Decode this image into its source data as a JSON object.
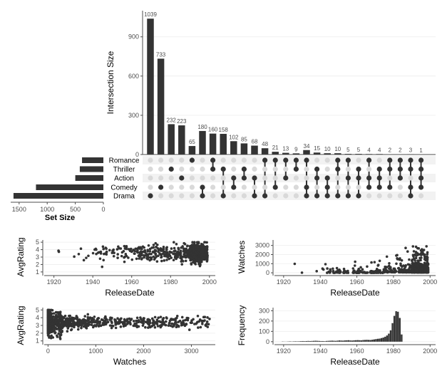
{
  "chart_data": [
    {
      "type": "bar",
      "name": "upset-intersection-sizes",
      "ylabel": "Intersection Size",
      "ylim": [
        0,
        1100
      ],
      "yticks": [
        0,
        300,
        600,
        900
      ],
      "ytick_labels": [
        "0",
        "300",
        "600",
        "900"
      ],
      "values": [
        1039,
        733,
        232,
        223,
        65,
        180,
        160,
        158,
        102,
        85,
        68,
        48,
        21,
        13,
        9,
        34,
        15,
        10,
        10,
        5,
        5,
        4,
        4,
        2,
        2,
        3,
        1
      ],
      "value_labels": [
        "1039",
        "733",
        "232",
        "223",
        "65",
        "180",
        "160",
        "158",
        "102",
        "85",
        "68",
        "48",
        "21",
        "13",
        "9",
        "34",
        "15",
        "10",
        "10",
        "5",
        "5",
        "4",
        "4",
        "2",
        "2",
        "3",
        "1"
      ],
      "combinations": [
        [
          "Drama"
        ],
        [
          "Comedy"
        ],
        [
          "Thriller"
        ],
        [
          "Action"
        ],
        [
          "Romance"
        ],
        [
          "Drama",
          "Comedy"
        ],
        [
          "Thriller",
          "Romance"
        ],
        [
          "Drama",
          "Thriller"
        ],
        [
          "Comedy",
          "Action"
        ],
        [
          "Thriller",
          "Action"
        ],
        [
          "Drama",
          "Action"
        ],
        [
          "Drama",
          "Romance"
        ],
        [
          "Comedy",
          "Romance"
        ],
        [
          "Action",
          "Romance"
        ],
        [
          "Thriller",
          "Romance"
        ],
        [
          "Drama",
          "Comedy",
          "Romance"
        ],
        [
          "Drama",
          "Thriller",
          "Action"
        ],
        [
          "Drama",
          "Comedy",
          "Action"
        ],
        [
          "Drama",
          "Thriller",
          "Romance"
        ],
        [
          "Drama",
          "Action",
          "Romance"
        ],
        [
          "Drama",
          "Thriller",
          "Action"
        ],
        [
          "Comedy",
          "Action",
          "Romance"
        ],
        [
          "Comedy",
          "Thriller",
          "Action"
        ],
        [
          "Comedy",
          "Thriller",
          "Romance"
        ],
        [
          "Thriller",
          "Action",
          "Romance"
        ],
        [
          "Drama",
          "Comedy",
          "Thriller",
          "Romance"
        ],
        [
          "Comedy",
          "Thriller",
          "Action",
          "Romance"
        ]
      ]
    },
    {
      "type": "bar",
      "name": "upset-set-sizes",
      "orientation": "horizontal",
      "xlabel": "Set Size",
      "xlim": [
        1650,
        0
      ],
      "xticks": [
        1500,
        1000,
        500,
        0
      ],
      "xtick_labels": [
        "1500",
        "1000",
        "500",
        "0"
      ],
      "sets": [
        "Romance",
        "Thriller",
        "Action",
        "Comedy",
        "Drama"
      ],
      "values": [
        380,
        420,
        500,
        1200,
        1600
      ]
    },
    {
      "type": "scatter",
      "name": "avgrating-vs-releasedate",
      "xlabel": "ReleaseDate",
      "ylabel": "AvgRating",
      "xlim": [
        1915,
        2003
      ],
      "ylim": [
        0.7,
        5.3
      ],
      "xticks": [
        1920,
        1940,
        1960,
        1980,
        2000
      ],
      "xtick_labels": [
        "1920",
        "1940",
        "1960",
        "1980",
        "2000"
      ],
      "yticks": [
        1,
        2,
        3,
        4,
        5
      ],
      "ytick_labels": [
        "1",
        "2",
        "3",
        "4",
        "5"
      ]
    },
    {
      "type": "scatter",
      "name": "watches-vs-releasedate",
      "xlabel": "ReleaseDate",
      "ylabel": "Watches",
      "xlim": [
        1915,
        2003
      ],
      "ylim": [
        -150,
        3600
      ],
      "xticks": [
        1920,
        1940,
        1960,
        1980,
        2000
      ],
      "xtick_labels": [
        "1920",
        "1940",
        "1960",
        "1980",
        "2000"
      ],
      "yticks": [
        0,
        1000,
        2000,
        3000
      ],
      "ytick_labels": [
        "0",
        "1000",
        "2000",
        "3000"
      ]
    },
    {
      "type": "scatter",
      "name": "avgrating-vs-watches",
      "xlabel": "Watches",
      "ylabel": "AvgRating",
      "xlim": [
        -80,
        3500
      ],
      "ylim": [
        0.7,
        5.3
      ],
      "xticks": [
        0,
        1000,
        2000,
        3000
      ],
      "xtick_labels": [
        "0",
        "1000",
        "2000",
        "3000"
      ],
      "yticks": [
        1,
        2,
        3,
        4,
        5
      ],
      "ytick_labels": [
        "1",
        "2",
        "3",
        "4",
        "5"
      ]
    },
    {
      "type": "bar",
      "name": "releasedate-histogram",
      "xlabel": "ReleaseDate",
      "ylabel": "Frequency",
      "xlim": [
        1915,
        2003
      ],
      "ylim": [
        -15,
        330
      ],
      "xticks": [
        1920,
        1940,
        1960,
        1980,
        2000
      ],
      "xtick_labels": [
        "1920",
        "1940",
        "1960",
        "1980",
        "2000"
      ],
      "yticks": [
        0,
        100,
        200,
        300
      ],
      "ytick_labels": [
        "0",
        "100",
        "200",
        "300"
      ],
      "bin_start": 1919,
      "bin_width": 1,
      "frequencies": [
        2,
        1,
        1,
        2,
        3,
        2,
        3,
        4,
        3,
        4,
        5,
        6,
        5,
        6,
        7,
        6,
        7,
        8,
        9,
        8,
        7,
        6,
        6,
        5,
        7,
        8,
        9,
        10,
        9,
        8,
        10,
        12,
        11,
        10,
        12,
        13,
        14,
        12,
        11,
        13,
        14,
        15,
        14,
        13,
        16,
        17,
        18,
        17,
        16,
        19,
        22,
        25,
        28,
        30,
        35,
        40,
        48,
        60,
        78,
        110,
        180,
        250,
        295,
        290,
        230,
        70
      ]
    }
  ]
}
